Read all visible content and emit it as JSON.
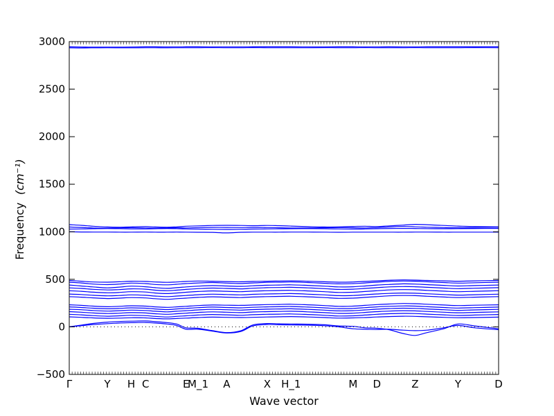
{
  "chart_data": {
    "type": "line",
    "title": "",
    "xlabel": "Wave vector",
    "ylabel": "Frequency",
    "ylabel_unit": "(cm⁻¹)",
    "ylim": [
      -500,
      3000
    ],
    "yticks": [
      -500,
      0,
      500,
      1000,
      1500,
      2000,
      2500,
      3000
    ],
    "ytick_labels": [
      "−500",
      "0",
      "500",
      "1000",
      "1500",
      "2000",
      "2500",
      "3000"
    ],
    "grid": false,
    "legend": "none",
    "line_color": "#0000ff",
    "xlim": [
      0,
      18
    ],
    "x_points": [
      {
        "label": "Γ",
        "x": 0
      },
      {
        "label": "Y",
        "x": 1.6
      },
      {
        "label": "H",
        "x": 2.6
      },
      {
        "label": "C",
        "x": 3.2
      },
      {
        "label": "E",
        "x": 4.9
      },
      {
        "label": "M_1",
        "x": 5.4
      },
      {
        "label": "A",
        "x": 6.6
      },
      {
        "label": "X",
        "x": 8.3
      },
      {
        "label": "H_1",
        "x": 9.3
      },
      {
        "label": "M",
        "x": 11.9
      },
      {
        "label": "D",
        "x": 12.9
      },
      {
        "label": "Z",
        "x": 14.5
      },
      {
        "label": "Y",
        "x": 16.3
      },
      {
        "label": "D",
        "x": 18
      }
    ],
    "x": [
      0,
      0.5,
      1.0,
      1.6,
      2.1,
      2.6,
      3.2,
      3.6,
      4.1,
      4.5,
      4.9,
      5.4,
      6.0,
      6.6,
      7.2,
      7.7,
      8.3,
      8.8,
      9.3,
      10.0,
      10.7,
      11.3,
      11.9,
      12.4,
      12.9,
      13.4,
      14.0,
      14.5,
      15.0,
      15.7,
      16.3,
      17.0,
      18.0
    ],
    "series": [
      {
        "values": [
          2945,
          2943,
          2942,
          2942,
          2942,
          2943,
          2945,
          2945,
          2944,
          2944,
          2945,
          2945,
          2944,
          2944,
          2944,
          2945,
          2945,
          2945,
          2945,
          2944,
          2944,
          2945,
          2945,
          2944,
          2944,
          2945,
          2944,
          2944,
          2945,
          2945,
          2945,
          2945,
          2945
        ]
      },
      {
        "values": [
          2935,
          2934,
          2935,
          2936,
          2935,
          2935,
          2936,
          2936,
          2935,
          2936,
          2936,
          2936,
          2937,
          2936,
          2936,
          2937,
          2936,
          2936,
          2936,
          2936,
          2937,
          2936,
          2936,
          2937,
          2936,
          2936,
          2936,
          2937,
          2936,
          2936,
          2936,
          2937,
          2936
        ]
      },
      {
        "values": [
          1075,
          1068,
          1058,
          1050,
          1048,
          1052,
          1055,
          1050,
          1048,
          1052,
          1058,
          1062,
          1066,
          1068,
          1066,
          1064,
          1066,
          1064,
          1060,
          1054,
          1050,
          1052,
          1056,
          1058,
          1055,
          1062,
          1070,
          1078,
          1074,
          1066,
          1060,
          1055,
          1052
        ]
      },
      {
        "values": [
          1050,
          1045,
          1040,
          1038,
          1040,
          1042,
          1040,
          1038,
          1040,
          1042,
          1040,
          1044,
          1046,
          1045,
          1044,
          1046,
          1044,
          1042,
          1040,
          1040,
          1042,
          1044,
          1042,
          1040,
          1044,
          1050,
          1055,
          1052,
          1048,
          1044,
          1042,
          1045,
          1048
        ]
      },
      {
        "values": [
          1028,
          1030,
          1032,
          1034,
          1033,
          1030,
          1030,
          1032,
          1034,
          1033,
          1030,
          1028,
          1026,
          1025,
          1026,
          1028,
          1030,
          1031,
          1032,
          1033,
          1032,
          1030,
          1028,
          1030,
          1032,
          1034,
          1035,
          1034,
          1033,
          1032,
          1033,
          1034,
          1035
        ]
      },
      {
        "values": [
          1000,
          998,
          997,
          997,
          996,
          996,
          997,
          996,
          996,
          997,
          996,
          995,
          994,
          988,
          995,
          996,
          996,
          996,
          997,
          997,
          996,
          995,
          996,
          996,
          996,
          996,
          996,
          997,
          997,
          996,
          996,
          996,
          996
        ]
      },
      {
        "values": [
          488,
          480,
          472,
          470,
          474,
          480,
          478,
          472,
          468,
          472,
          478,
          482,
          480,
          476,
          474,
          478,
          480,
          482,
          484,
          480,
          474,
          470,
          472,
          478,
          484,
          490,
          494,
          492,
          488,
          484,
          480,
          484,
          488
        ]
      },
      {
        "values": [
          470,
          462,
          450,
          444,
          450,
          460,
          455,
          446,
          442,
          448,
          455,
          462,
          466,
          460,
          456,
          462,
          468,
          470,
          472,
          466,
          458,
          452,
          455,
          462,
          470,
          478,
          482,
          480,
          474,
          466,
          460,
          464,
          470
        ]
      },
      {
        "values": [
          440,
          430,
          420,
          410,
          418,
          428,
          422,
          412,
          405,
          412,
          420,
          428,
          434,
          430,
          426,
          432,
          438,
          440,
          442,
          436,
          428,
          420,
          422,
          430,
          440,
          446,
          452,
          450,
          444,
          436,
          430,
          434,
          440
        ]
      },
      {
        "values": [
          410,
          404,
          395,
          388,
          392,
          400,
          396,
          386,
          380,
          386,
          394,
          402,
          408,
          404,
          400,
          406,
          412,
          414,
          416,
          410,
          402,
          394,
          396,
          404,
          412,
          420,
          424,
          422,
          416,
          408,
          402,
          406,
          412
        ]
      },
      {
        "values": [
          380,
          374,
          365,
          358,
          362,
          370,
          366,
          356,
          350,
          356,
          364,
          372,
          378,
          374,
          370,
          376,
          380,
          382,
          384,
          378,
          370,
          362,
          364,
          372,
          380,
          388,
          392,
          390,
          384,
          376,
          370,
          374,
          380
        ]
      },
      {
        "values": [
          345,
          340,
          332,
          326,
          330,
          336,
          332,
          324,
          318,
          324,
          330,
          338,
          344,
          340,
          336,
          342,
          346,
          348,
          350,
          344,
          336,
          328,
          330,
          338,
          346,
          352,
          356,
          354,
          348,
          340,
          334,
          338,
          344
        ]
      },
      {
        "values": [
          318,
          312,
          305,
          298,
          302,
          308,
          304,
          296,
          290,
          296,
          302,
          310,
          316,
          312,
          308,
          314,
          318,
          320,
          322,
          316,
          308,
          300,
          302,
          310,
          318,
          326,
          330,
          328,
          322,
          314,
          308,
          312,
          318
        ]
      },
      {
        "values": [
          232,
          226,
          218,
          212,
          216,
          222,
          218,
          210,
          205,
          210,
          216,
          224,
          230,
          228,
          226,
          230,
          234,
          236,
          238,
          232,
          224,
          216,
          218,
          226,
          234,
          240,
          246,
          244,
          238,
          230,
          224,
          228,
          232
        ]
      },
      {
        "values": [
          210,
          204,
          196,
          190,
          194,
          200,
          196,
          188,
          182,
          188,
          194,
          202,
          208,
          204,
          200,
          206,
          210,
          212,
          214,
          208,
          200,
          192,
          194,
          202,
          210,
          216,
          220,
          218,
          212,
          204,
          198,
          202,
          208
        ]
      },
      {
        "values": [
          185,
          180,
          172,
          166,
          170,
          176,
          172,
          164,
          158,
          164,
          170,
          178,
          184,
          180,
          176,
          182,
          186,
          188,
          190,
          184,
          176,
          168,
          170,
          178,
          186,
          192,
          196,
          194,
          188,
          180,
          174,
          178,
          184
        ]
      },
      {
        "values": [
          160,
          154,
          146,
          140,
          144,
          150,
          146,
          138,
          132,
          138,
          144,
          152,
          158,
          154,
          150,
          156,
          160,
          162,
          164,
          158,
          150,
          142,
          144,
          152,
          160,
          166,
          170,
          168,
          162,
          154,
          148,
          152,
          158
        ]
      },
      {
        "values": [
          132,
          126,
          118,
          112,
          116,
          122,
          118,
          110,
          104,
          110,
          116,
          124,
          130,
          126,
          122,
          128,
          132,
          134,
          136,
          130,
          122,
          114,
          116,
          124,
          132,
          138,
          142,
          140,
          134,
          126,
          120,
          124,
          130
        ]
      },
      {
        "values": [
          105,
          100,
          94,
          90,
          92,
          96,
          94,
          88,
          84,
          88,
          92,
          98,
          102,
          100,
          98,
          100,
          104,
          106,
          108,
          104,
          98,
          92,
          94,
          98,
          104,
          108,
          112,
          110,
          106,
          100,
          96,
          98,
          102
        ]
      },
      {
        "values": [
          0,
          18,
          36,
          50,
          56,
          60,
          62,
          55,
          45,
          30,
          -10,
          -15,
          -40,
          -60,
          -40,
          20,
          35,
          32,
          30,
          28,
          22,
          10,
          5,
          -10,
          -15,
          -30,
          -70,
          -90,
          -60,
          -20,
          30,
          10,
          -20
        ]
      },
      {
        "values": [
          0,
          12,
          24,
          34,
          40,
          44,
          46,
          40,
          30,
          15,
          -25,
          -25,
          -45,
          -65,
          -48,
          10,
          25,
          22,
          20,
          18,
          12,
          0,
          -20,
          -25,
          -28,
          -25,
          -35,
          -40,
          -35,
          -10,
          15,
          -10,
          -30
        ]
      }
    ]
  }
}
